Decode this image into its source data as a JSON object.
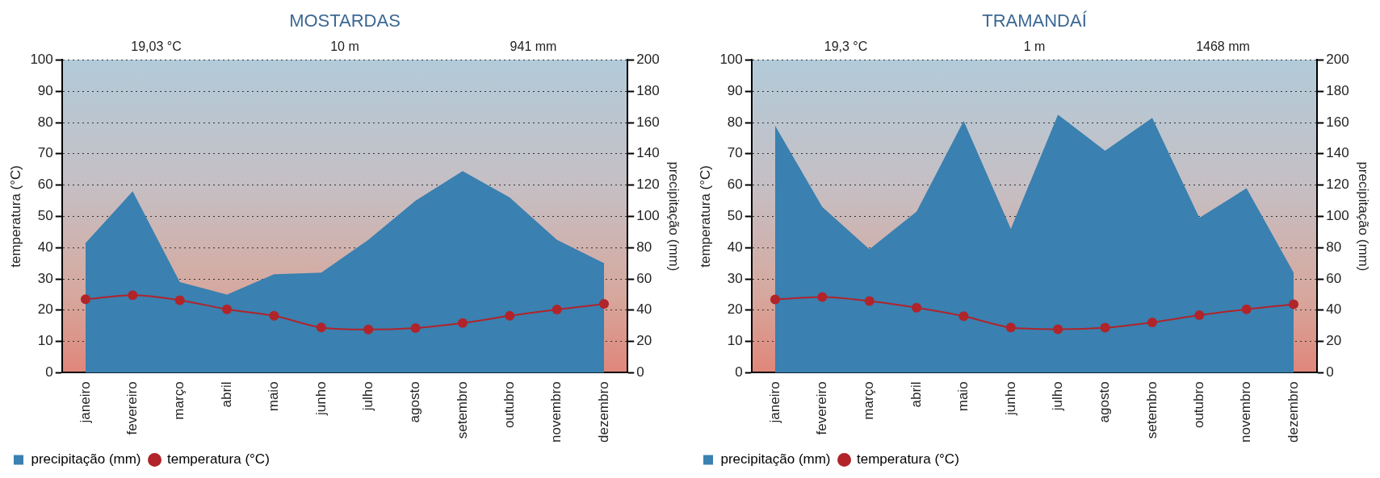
{
  "chart_data": [
    {
      "type": "line",
      "title": "MOSTARDAS",
      "annotations": [
        "19,03 °C",
        "10 m",
        "941 mm"
      ],
      "xlabel": null,
      "ylabel": "temperatura (°C)",
      "y2label": "precipitação (mm)",
      "categories": [
        "janeiro",
        "fevereiro",
        "março",
        "abril",
        "maio",
        "junho",
        "julho",
        "agosto",
        "setembro",
        "outubro",
        "novembro",
        "dezembro"
      ],
      "series": [
        {
          "name": "precipitação (mm)",
          "type": "area",
          "axis": "y2",
          "color": "#3a80b0",
          "values": [
            83,
            116,
            58,
            50,
            63,
            64,
            85,
            110,
            129,
            112,
            85,
            70
          ]
        },
        {
          "name": "temperatura (°C)",
          "color": "#b0242a",
          "marker": "circle",
          "values": [
            23.5,
            24.8,
            23.2,
            20.3,
            18.2,
            14.5,
            13.8,
            14.3,
            15.9,
            18.2,
            20.2,
            22.0
          ]
        }
      ],
      "ylim": [
        0,
        100
      ],
      "yticks": [
        0,
        10,
        20,
        30,
        40,
        50,
        60,
        70,
        80,
        90,
        100
      ],
      "y2lim": [
        0,
        200
      ],
      "y2ticks": [
        0,
        20,
        40,
        60,
        80,
        100,
        120,
        140,
        160,
        180,
        200
      ],
      "grid": "y",
      "legend": "bottom left"
    },
    {
      "type": "line",
      "title": "TRAMANDAÍ",
      "annotations": [
        "19,3 °C",
        "1 m",
        "1468 mm"
      ],
      "ylabel": "temperatura (°C)",
      "y2label": "precipitação (mm)",
      "categories": [
        "janeiro",
        "fevereiro",
        "março",
        "abril",
        "maio",
        "junho",
        "julho",
        "agosto",
        "setembro",
        "outubro",
        "novembro",
        "dezembro"
      ],
      "series": [
        {
          "name": "precipitação (mm)",
          "type": "area",
          "axis": "y2",
          "color": "#3a80b0",
          "values": [
            158,
            106,
            79,
            103,
            161,
            92,
            165,
            142,
            163,
            99,
            118,
            64
          ]
        },
        {
          "name": "temperatura (°C)",
          "color": "#b0242a",
          "marker": "circle",
          "values": [
            23.4,
            24.2,
            22.9,
            20.8,
            18.1,
            14.5,
            13.9,
            14.4,
            16.1,
            18.4,
            20.3,
            21.9
          ]
        }
      ],
      "ylim": [
        0,
        100
      ],
      "yticks": [
        0,
        10,
        20,
        30,
        40,
        50,
        60,
        70,
        80,
        90,
        100
      ],
      "y2lim": [
        0,
        200
      ],
      "y2ticks": [
        0,
        20,
        40,
        60,
        80,
        100,
        120,
        140,
        160,
        180,
        200
      ],
      "grid": "y",
      "legend": "bottom left"
    }
  ]
}
